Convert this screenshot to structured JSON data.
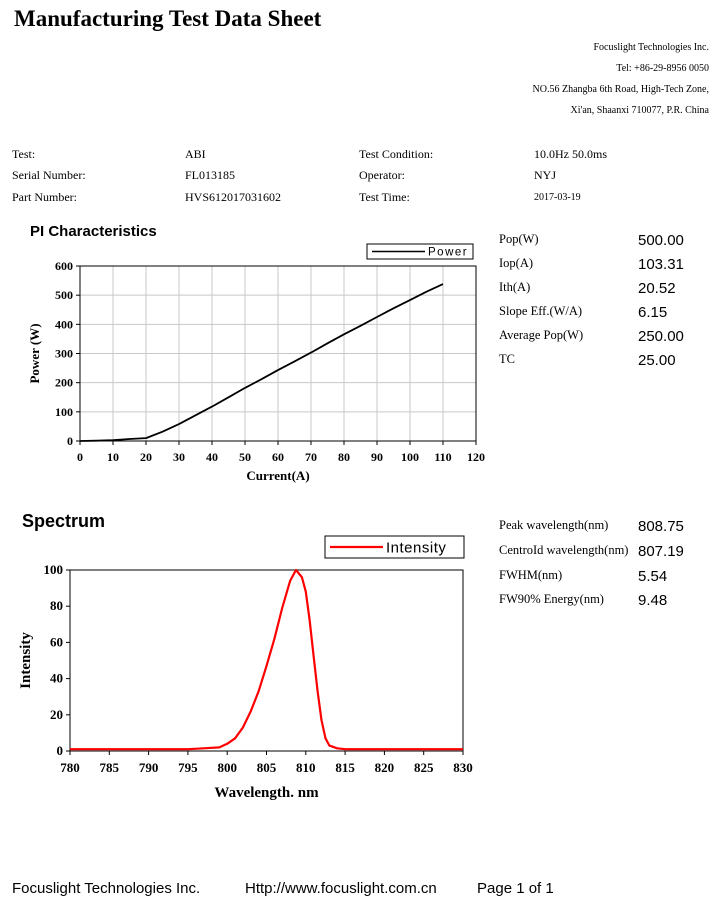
{
  "title": "Manufacturing Test Data Sheet",
  "company": {
    "name": "Focuslight Technologies Inc.",
    "tel": "Tel:  +86-29-8956  0050",
    "address_line1": "NO.56 Zhangba 6th Road, High-Tech Zone,",
    "address_line2": "Xi'an, Shaanxi 710077,  P.R.  China"
  },
  "info": {
    "test_label": "Test:",
    "test_value": "ABI",
    "serial_label": "Serial Number:",
    "serial_value": "FL013185",
    "part_label": "Part Number:",
    "part_value": "HVS612017031602",
    "condition_label": "Test Condition:",
    "condition_value": "10.0Hz 50.0ms",
    "operator_label": "Operator:",
    "operator_value": "NYJ",
    "time_label": "Test Time:",
    "time_value": "2017-03-19"
  },
  "pi": {
    "title": "PI Characteristics",
    "params": [
      {
        "label": "Pop(W)",
        "value": "500.00"
      },
      {
        "label": "Iop(A)",
        "value": "103.31"
      },
      {
        "label": "Ith(A)",
        "value": "20.52"
      },
      {
        "label": "Slope Eff.(W/A)",
        "value": "6.15"
      },
      {
        "label": "Average Pop(W)",
        "value": "250.00"
      },
      {
        "label": "TC",
        "value": "25.00"
      }
    ]
  },
  "spectrum": {
    "title": "Spectrum",
    "params": [
      {
        "label": "Peak wavelength(nm)",
        "value": "808.75"
      },
      {
        "label": "CentroId wavelength(nm)",
        "value": "807.19"
      },
      {
        "label": "FWHM(nm)",
        "value": "5.54"
      },
      {
        "label": "FW90% Energy(nm)",
        "value": "9.48"
      }
    ]
  },
  "footer": {
    "company": "Focuslight Technologies Inc.",
    "url": "Http://www.focuslight.com.cn",
    "page": "Page 1 of 1"
  },
  "chart_data": [
    {
      "type": "line",
      "xlabel": "Current(A)",
      "ylabel": "Power (W)",
      "xlim": [
        0,
        120
      ],
      "ylim": [
        0,
        600
      ],
      "xticks": [
        0,
        10,
        20,
        30,
        40,
        50,
        60,
        70,
        80,
        90,
        100,
        110,
        120
      ],
      "yticks": [
        0,
        100,
        200,
        300,
        400,
        500,
        600
      ],
      "grid": true,
      "legend_position": "top-right",
      "color": "#000000",
      "series": [
        {
          "name": "Power",
          "x": [
            0,
            5,
            10,
            15,
            20,
            25,
            30,
            35,
            40,
            45,
            50,
            55,
            60,
            65,
            70,
            75,
            80,
            85,
            90,
            95,
            100,
            105,
            110
          ],
          "y": [
            0,
            1,
            3,
            7,
            10,
            32,
            58,
            88,
            118,
            150,
            182,
            212,
            243,
            273,
            303,
            335,
            366,
            395,
            425,
            455,
            483,
            512,
            538
          ]
        }
      ]
    },
    {
      "type": "line",
      "xlabel": "Wavelength. nm",
      "ylabel": "Intensity",
      "xlim": [
        780,
        830
      ],
      "ylim": [
        0,
        100
      ],
      "xticks": [
        780,
        785,
        790,
        795,
        800,
        805,
        810,
        815,
        820,
        825,
        830
      ],
      "yticks": [
        0,
        20,
        40,
        60,
        80,
        100
      ],
      "grid": false,
      "legend_position": "top-right",
      "color": "#ff0000",
      "series": [
        {
          "name": "Intensity",
          "x": [
            780,
            782,
            785,
            790,
            795,
            797,
            799,
            800,
            801,
            802,
            803,
            804,
            805,
            806,
            807,
            808,
            808.75,
            809.5,
            810,
            810.5,
            811,
            811.5,
            812,
            812.5,
            813,
            814,
            815,
            820,
            825,
            830
          ],
          "y": [
            1,
            1,
            1,
            1,
            1,
            1.5,
            2,
            4,
            7,
            13,
            22,
            33,
            47,
            62,
            79,
            94,
            100,
            96,
            88,
            72,
            52,
            33,
            17,
            7,
            3,
            1.5,
            1,
            1,
            1,
            1
          ]
        }
      ]
    }
  ]
}
